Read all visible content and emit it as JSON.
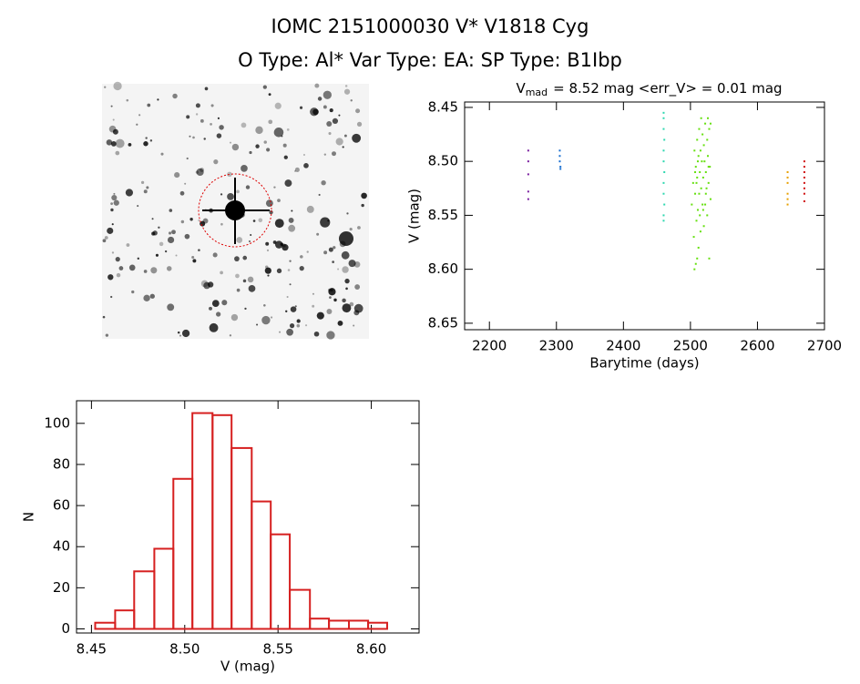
{
  "header": {
    "title": "IOMC 2151000030    V* V1818 Cyg",
    "subtitle": "O Type: Al*   Var Type: EA:   SP Type: B1Ibp"
  },
  "chart_data": [
    {
      "type": "scatter",
      "title_parts": [
        "V",
        "mad",
        "= 8.52 mag  <err_V> = 0.01 mag"
      ],
      "x_label": "Barytime (days)",
      "y_label": "V (mag)",
      "xlim": [
        2163,
        2700
      ],
      "ylim": [
        8.656,
        8.445
      ],
      "xticks": [
        2200,
        2300,
        2400,
        2500,
        2600,
        2700
      ],
      "yticks": [
        8.45,
        {
          "value": 8.5,
          "label": "8.50"
        },
        8.55,
        {
          "value": 8.6,
          "label": "8.60"
        },
        8.65
      ],
      "series": [
        {
          "color": "#7a1fa0",
          "x": [
            2258,
            2258,
            2258,
            2258,
            2258
          ],
          "values": [
            8.49,
            8.5,
            8.512,
            8.528,
            8.535
          ]
        },
        {
          "color": "#1a6fd0",
          "x": [
            2305,
            2305,
            2305,
            2306,
            2306
          ],
          "values": [
            8.49,
            8.495,
            8.5,
            8.505,
            8.507
          ]
        },
        {
          "color": "#2fd8b0",
          "x": [
            2460,
            2460,
            2460,
            2461,
            2460,
            2460,
            2461,
            2460,
            2460,
            2461,
            2460,
            2460
          ],
          "values": [
            8.455,
            8.46,
            8.47,
            8.48,
            8.49,
            8.5,
            8.51,
            8.52,
            8.53,
            8.54,
            8.55,
            8.555
          ]
        },
        {
          "color": "#66e010",
          "x": [
            2506,
            2508,
            2510,
            2512,
            2505,
            2515,
            2520,
            2528,
            2509,
            2525,
            2511,
            2518,
            2522,
            2530,
            2507,
            2513,
            2516,
            2524,
            2527,
            2504,
            2510,
            2519,
            2514,
            2523,
            2529,
            2508,
            2517,
            2521,
            2526,
            2512,
            2506,
            2515,
            2520,
            2525,
            2510,
            2518,
            2528,
            2513,
            2522,
            2530,
            2516,
            2526,
            2511,
            2509,
            2523,
            2519,
            2514,
            2507,
            2527,
            2502
          ],
          "values": [
            8.6,
            8.595,
            8.59,
            8.58,
            8.57,
            8.565,
            8.56,
            8.59,
            8.555,
            8.55,
            8.545,
            8.54,
            8.54,
            8.535,
            8.53,
            8.53,
            8.525,
            8.525,
            8.52,
            8.52,
            8.515,
            8.515,
            8.51,
            8.51,
            8.505,
            8.505,
            8.5,
            8.5,
            8.495,
            8.495,
            8.49,
            8.49,
            8.485,
            8.48,
            8.48,
            8.475,
            8.47,
            8.47,
            8.465,
            8.465,
            8.46,
            8.46,
            8.5,
            8.52,
            8.53,
            8.545,
            8.55,
            8.51,
            8.505,
            8.54
          ]
        },
        {
          "color": "#e8a000",
          "x": [
            2645,
            2645,
            2645,
            2645,
            2645,
            2645
          ],
          "values": [
            8.51,
            8.515,
            8.52,
            8.53,
            8.535,
            8.54
          ]
        },
        {
          "color": "#d01010",
          "x": [
            2670,
            2670,
            2670,
            2670,
            2670,
            2670,
            2670,
            2670
          ],
          "values": [
            8.5,
            8.505,
            8.51,
            8.515,
            8.52,
            8.525,
            8.53,
            8.537
          ]
        }
      ]
    },
    {
      "type": "histogram",
      "x_label": "V (mag)",
      "y_label": "N",
      "color": "#d62020",
      "bins": [
        8.452,
        8.4627,
        8.4729,
        8.4837,
        8.4939,
        8.5041,
        8.5149,
        8.5251,
        8.5359,
        8.5461,
        8.5563,
        8.5671,
        8.5773,
        8.588,
        8.5983,
        8.6085
      ],
      "values": [
        3,
        9,
        28,
        39,
        73,
        105,
        104,
        88,
        62,
        46,
        19,
        5,
        4,
        4,
        3
      ],
      "xlim": [
        8.442,
        8.6256
      ],
      "ylim": [
        -2,
        111
      ],
      "xticks": [
        8.45,
        {
          "value": 8.5,
          "label": "8.50"
        },
        8.55,
        {
          "value": 8.6,
          "label": "8.60"
        }
      ],
      "yticks": [
        0,
        20,
        40,
        60,
        80,
        100
      ]
    }
  ]
}
